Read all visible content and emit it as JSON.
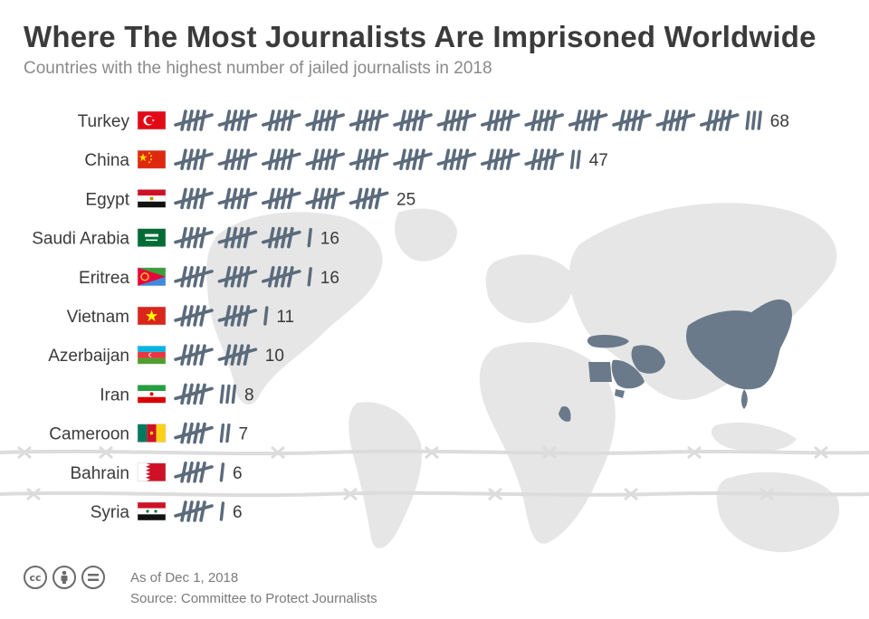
{
  "title": "Where The Most Journalists Are Imprisoned Worldwide",
  "subtitle": "Countries with the highest number of jailed journalists in 2018",
  "footer": {
    "as_of": "As of Dec 1, 2018",
    "source": "Source: Committee to Protect Journalists",
    "license_icons": [
      "cc-icon",
      "attribution-icon",
      "no-derivatives-icon"
    ]
  },
  "colors": {
    "tally": "#5b6b7c",
    "highlight_country": "#6a7a8b",
    "map_land": "#e5e5e5",
    "barbed_wire": "#d9d9d9"
  },
  "chart_data": {
    "type": "bar",
    "style": "tally marks (groups of five)",
    "title": "Where The Most Journalists Are Imprisoned Worldwide",
    "subtitle": "Countries with the highest number of jailed journalists in 2018",
    "categories": [
      "Turkey",
      "China",
      "Egypt",
      "Saudi Arabia",
      "Eritrea",
      "Vietnam",
      "Azerbaijan",
      "Iran",
      "Cameroon",
      "Bahrain",
      "Syria"
    ],
    "values": [
      68,
      47,
      25,
      16,
      16,
      11,
      10,
      8,
      7,
      6,
      6
    ],
    "flags": [
      "turkey-flag",
      "china-flag",
      "egypt-flag",
      "saudi-arabia-flag",
      "eritrea-flag",
      "vietnam-flag",
      "azerbaijan-flag",
      "iran-flag",
      "cameroon-flag",
      "bahrain-flag",
      "syria-flag"
    ],
    "xlabel": "",
    "ylabel": "",
    "grid": false,
    "legend": "none"
  }
}
